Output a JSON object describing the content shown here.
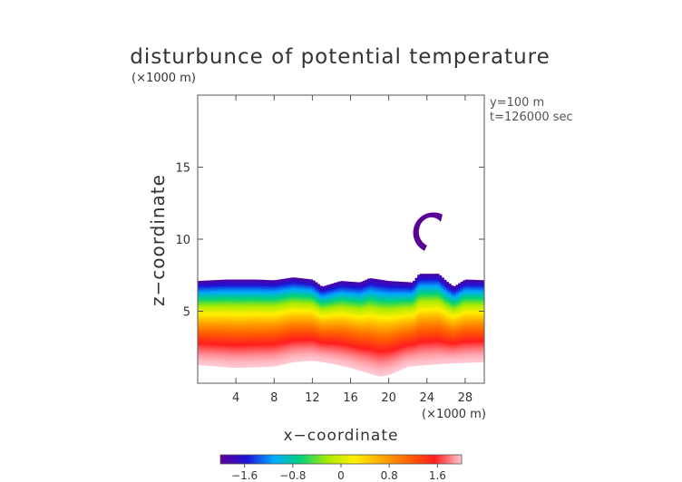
{
  "chart_data": {
    "type": "heatmap",
    "title": "disturbunce of potential temperature",
    "xlabel": "x−coordinate",
    "ylabel": "z−coordinate",
    "x_unit": "(×1000 m)",
    "y_unit": "(×1000 m)",
    "annotations": [
      "y=100 m",
      "t=126000 sec"
    ],
    "xlim": [
      0,
      30
    ],
    "ylim": [
      0,
      20
    ],
    "x_ticks": [
      4,
      8,
      12,
      16,
      20,
      24,
      28
    ],
    "y_ticks": [
      5,
      10,
      15
    ],
    "colorbar": {
      "min": -2.0,
      "max": 2.0,
      "ticks": [
        -1.6,
        -0.8,
        0,
        0.8,
        1.6
      ],
      "tick_labels": [
        "−1.6",
        "−0.8",
        "0",
        "0.8",
        "1.6"
      ],
      "colors": [
        "#5a0096",
        "#1e14d8",
        "#00aaff",
        "#00d278",
        "#aaeb00",
        "#fff000",
        "#ffaa00",
        "#ff6400",
        "#ff1e1e",
        "#ffc8d2"
      ]
    },
    "top_boundary_km": [
      [
        0,
        7.1
      ],
      [
        3,
        7.2
      ],
      [
        6,
        7.2
      ],
      [
        8,
        7.15
      ],
      [
        10,
        7.35
      ],
      [
        12,
        7.2
      ],
      [
        13,
        6.7
      ],
      [
        15,
        7.1
      ],
      [
        17,
        7.0
      ],
      [
        18,
        7.3
      ],
      [
        20,
        7.1
      ],
      [
        22.5,
        7.0
      ],
      [
        23.2,
        7.6
      ],
      [
        25.2,
        7.6
      ],
      [
        26,
        7.1
      ],
      [
        26.8,
        6.7
      ],
      [
        28,
        7.2
      ],
      [
        30,
        7.15
      ]
    ],
    "bottom_boundary_km": [
      [
        0,
        1.3
      ],
      [
        4,
        1.1
      ],
      [
        8,
        1.2
      ],
      [
        10,
        1.5
      ],
      [
        12,
        1.6
      ],
      [
        14,
        1.4
      ],
      [
        16,
        1.1
      ],
      [
        18,
        0.7
      ],
      [
        19,
        0.5
      ],
      [
        20,
        0.6
      ],
      [
        21,
        0.9
      ],
      [
        22,
        1.2
      ],
      [
        24,
        1.3
      ],
      [
        26,
        1.4
      ],
      [
        28,
        1.45
      ],
      [
        30,
        1.5
      ]
    ],
    "field_description": "cold anomaly (about −2) at the top of the layer near 7 km, warming downward to about +2 near the ground",
    "isolated_feature": {
      "center_km": [
        24.3,
        10.7
      ],
      "value": -2.0,
      "shape": "crescent"
    }
  }
}
